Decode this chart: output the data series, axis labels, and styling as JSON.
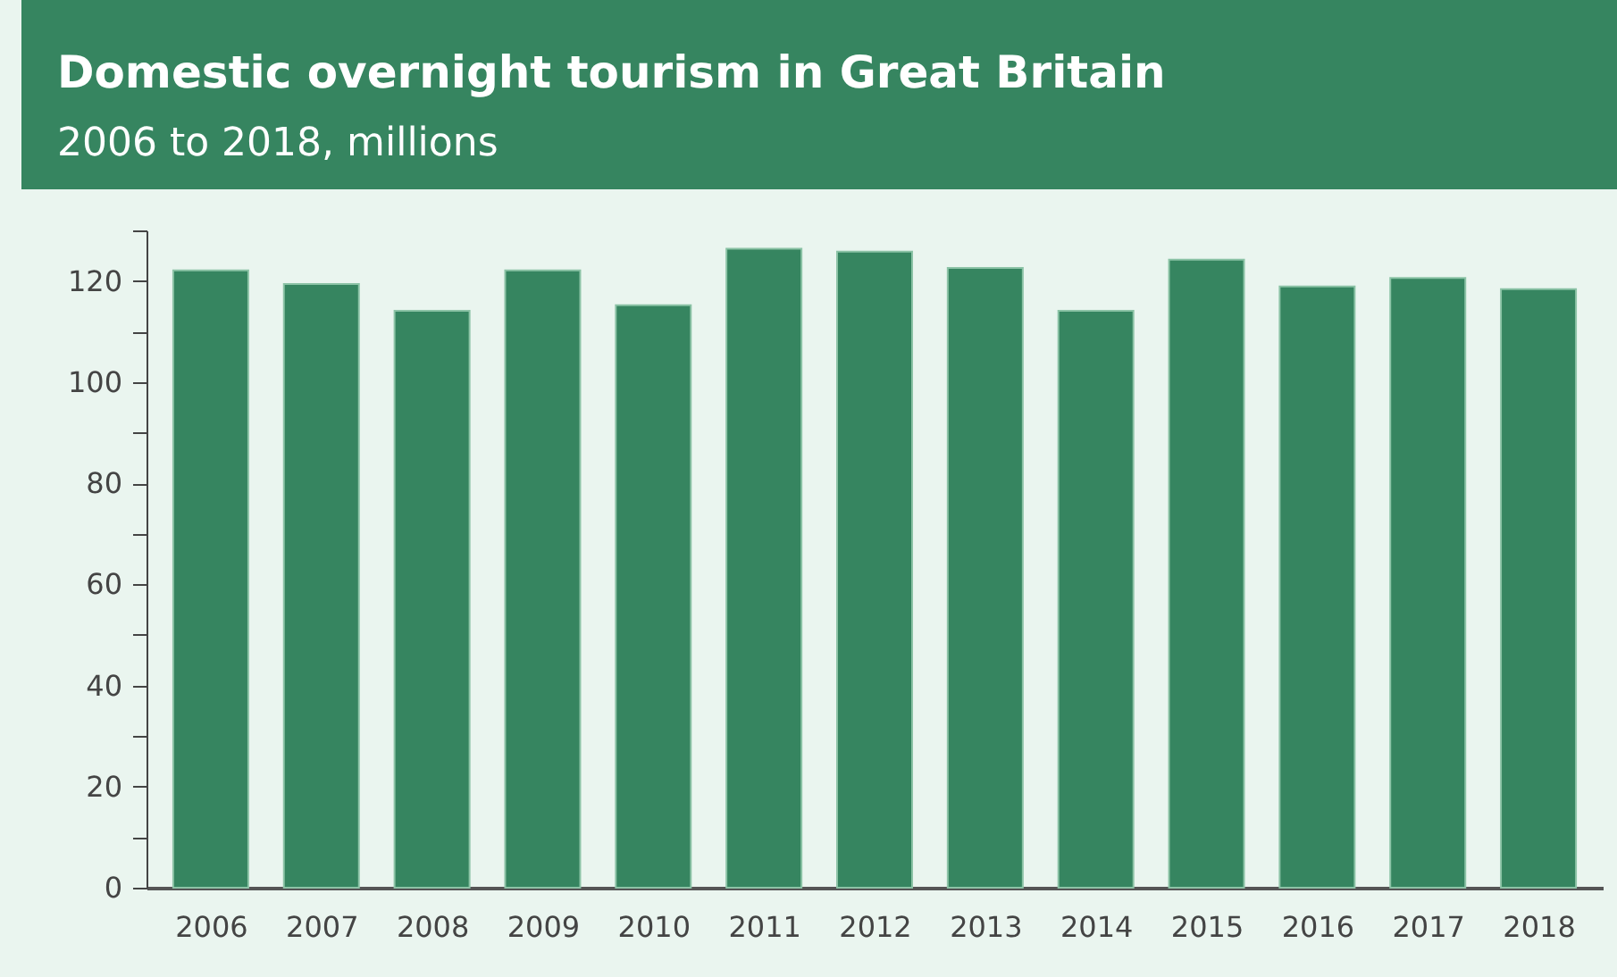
{
  "chart_data": {
    "type": "bar",
    "title": "Domestic overnight tourism in Great Britain",
    "subtitle": "2006 to 2018, millions",
    "categories": [
      "2006",
      "2007",
      "2008",
      "2009",
      "2010",
      "2011",
      "2012",
      "2013",
      "2014",
      "2015",
      "2016",
      "2017",
      "2018"
    ],
    "values": [
      122.1,
      119.4,
      114.1,
      122.1,
      115.2,
      126.4,
      125.8,
      122.6,
      114.1,
      124.2,
      118.9,
      120.6,
      118.4
    ],
    "color": "#368560",
    "ylim": [
      0,
      130
    ],
    "yticks": [
      0,
      {
        "value": 10,
        "label": null
      },
      20,
      {
        "value": 30,
        "label": null
      },
      40,
      {
        "value": 50,
        "label": null
      },
      60,
      {
        "value": 70,
        "label": null
      },
      80,
      {
        "value": 90,
        "label": null
      },
      100,
      {
        "value": 110,
        "label": null
      },
      120,
      {
        "value": 130,
        "label": null
      }
    ],
    "grid": false
  }
}
